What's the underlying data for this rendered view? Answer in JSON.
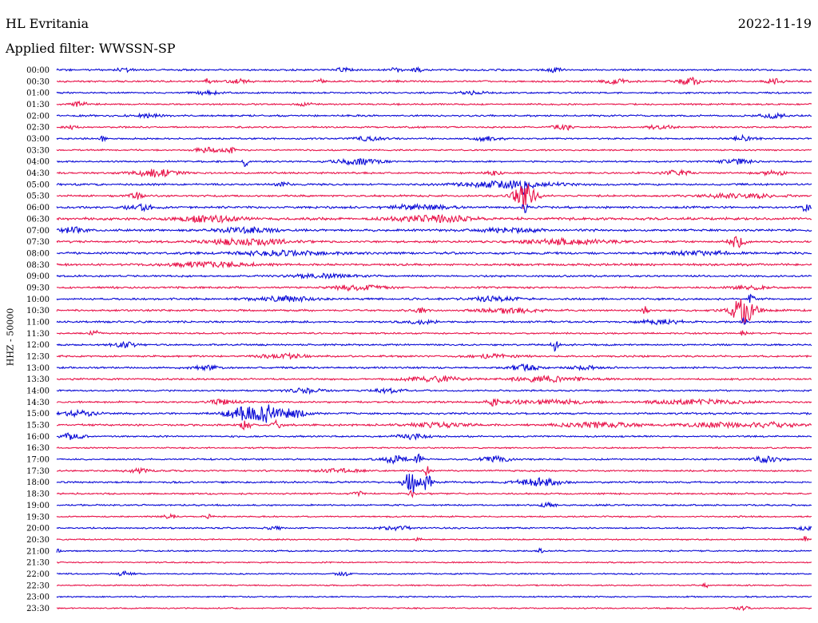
{
  "header": {
    "station": "HL Evritania",
    "date": "2022-11-19",
    "filter": "Applied filter: WWSSN-SP"
  },
  "channel_label": "HHZ - 50000",
  "colors": {
    "trace_a": "#0a0ad6",
    "trace_b": "#e8134a"
  },
  "chart_data": {
    "type": "helicorder",
    "rows": [
      {
        "time": "00:00",
        "noise": 0.55,
        "events": [
          {
            "t": 0.09,
            "a": 1.2,
            "w": 0.01
          },
          {
            "t": 0.38,
            "a": 1.3,
            "w": 0.01
          },
          {
            "t": 0.45,
            "a": 2.2,
            "w": 0.006
          },
          {
            "t": 0.48,
            "a": 1.2,
            "w": 0.01
          },
          {
            "t": 0.66,
            "a": 1.3,
            "w": 0.01
          }
        ]
      },
      {
        "time": "00:30",
        "noise": 0.55,
        "events": [
          {
            "t": 0.2,
            "a": 1.5,
            "w": 0.006
          },
          {
            "t": 0.24,
            "a": 1.6,
            "w": 0.012
          },
          {
            "t": 0.35,
            "a": 2.2,
            "w": 0.005
          },
          {
            "t": 0.74,
            "a": 1.8,
            "w": 0.015
          },
          {
            "t": 0.84,
            "a": 2.2,
            "w": 0.015
          },
          {
            "t": 0.95,
            "a": 1.5,
            "w": 0.012
          }
        ]
      },
      {
        "time": "01:00",
        "noise": 0.5,
        "events": [
          {
            "t": 0.2,
            "a": 1.0,
            "w": 0.02
          },
          {
            "t": 0.55,
            "a": 1.0,
            "w": 0.02
          }
        ]
      },
      {
        "time": "01:30",
        "noise": 0.5,
        "events": [
          {
            "t": 0.03,
            "a": 1.6,
            "w": 0.01
          },
          {
            "t": 0.33,
            "a": 1.0,
            "w": 0.01
          }
        ]
      },
      {
        "time": "02:00",
        "noise": 0.55,
        "events": [
          {
            "t": 0.12,
            "a": 1.0,
            "w": 0.02
          },
          {
            "t": 0.95,
            "a": 1.4,
            "w": 0.02
          }
        ]
      },
      {
        "time": "02:30",
        "noise": 0.5,
        "events": [
          {
            "t": 0.02,
            "a": 1.4,
            "w": 0.01
          },
          {
            "t": 0.67,
            "a": 2.2,
            "w": 0.012
          },
          {
            "t": 0.8,
            "a": 1.2,
            "w": 0.02
          }
        ]
      },
      {
        "time": "03:00",
        "noise": 0.5,
        "events": [
          {
            "t": 0.06,
            "a": 2.0,
            "w": 0.004
          },
          {
            "t": 0.41,
            "a": 1.3,
            "w": 0.02
          },
          {
            "t": 0.57,
            "a": 1.3,
            "w": 0.02
          },
          {
            "t": 0.91,
            "a": 1.8,
            "w": 0.015
          }
        ]
      },
      {
        "time": "03:30",
        "noise": 0.45,
        "events": [
          {
            "t": 0.2,
            "a": 1.5,
            "w": 0.02
          },
          {
            "t": 0.23,
            "a": 2.0,
            "w": 0.006
          }
        ]
      },
      {
        "time": "04:00",
        "noise": 0.5,
        "events": [
          {
            "t": 0.25,
            "a": 5.5,
            "w": 0.003
          },
          {
            "t": 0.4,
            "a": 2.0,
            "w": 0.03
          },
          {
            "t": 0.9,
            "a": 1.5,
            "w": 0.02
          }
        ]
      },
      {
        "time": "04:30",
        "noise": 0.55,
        "events": [
          {
            "t": 0.13,
            "a": 2.5,
            "w": 0.03
          },
          {
            "t": 0.58,
            "a": 1.2,
            "w": 0.01
          },
          {
            "t": 0.82,
            "a": 1.5,
            "w": 0.02
          },
          {
            "t": 0.95,
            "a": 1.2,
            "w": 0.02
          }
        ]
      },
      {
        "time": "05:00",
        "noise": 0.6,
        "events": [
          {
            "t": 0.3,
            "a": 1.4,
            "w": 0.01
          },
          {
            "t": 0.6,
            "a": 2.2,
            "w": 0.06
          },
          {
            "t": 0.62,
            "a": 5.5,
            "w": 0.004
          }
        ]
      },
      {
        "time": "05:30",
        "noise": 0.6,
        "events": [
          {
            "t": 0.105,
            "a": 2.2,
            "w": 0.008
          },
          {
            "t": 0.62,
            "a": 9.0,
            "w": 0.014
          },
          {
            "t": 0.9,
            "a": 1.5,
            "w": 0.05
          }
        ]
      },
      {
        "time": "06:00",
        "noise": 0.7,
        "events": [
          {
            "t": 0.11,
            "a": 1.6,
            "w": 0.02
          },
          {
            "t": 0.48,
            "a": 1.4,
            "w": 0.04
          },
          {
            "t": 0.62,
            "a": 4.0,
            "w": 0.003
          },
          {
            "t": 0.99,
            "a": 2.0,
            "w": 0.01
          }
        ]
      },
      {
        "time": "06:30",
        "noise": 0.8,
        "events": [
          {
            "t": 0.2,
            "a": 2.0,
            "w": 0.04
          },
          {
            "t": 0.5,
            "a": 2.0,
            "w": 0.05
          }
        ]
      },
      {
        "time": "07:00",
        "noise": 0.7,
        "events": [
          {
            "t": 0.02,
            "a": 2.0,
            "w": 0.015
          },
          {
            "t": 0.25,
            "a": 1.5,
            "w": 0.04
          },
          {
            "t": 0.6,
            "a": 1.3,
            "w": 0.04
          }
        ]
      },
      {
        "time": "07:30",
        "noise": 0.65,
        "events": [
          {
            "t": 0.25,
            "a": 2.2,
            "w": 0.05
          },
          {
            "t": 0.68,
            "a": 2.0,
            "w": 0.06
          },
          {
            "t": 0.9,
            "a": 4.0,
            "w": 0.01
          }
        ]
      },
      {
        "time": "08:00",
        "noise": 0.7,
        "events": [
          {
            "t": 0.3,
            "a": 1.5,
            "w": 0.06
          },
          {
            "t": 0.85,
            "a": 1.4,
            "w": 0.04
          }
        ]
      },
      {
        "time": "08:30",
        "noise": 0.7,
        "events": [
          {
            "t": 0.2,
            "a": 1.6,
            "w": 0.05
          }
        ]
      },
      {
        "time": "09:00",
        "noise": 0.55,
        "events": [
          {
            "t": 0.35,
            "a": 1.2,
            "w": 0.05
          }
        ]
      },
      {
        "time": "09:30",
        "noise": 0.6,
        "events": [
          {
            "t": 0.4,
            "a": 2.0,
            "w": 0.03
          },
          {
            "t": 0.92,
            "a": 1.3,
            "w": 0.02
          }
        ]
      },
      {
        "time": "10:00",
        "noise": 0.6,
        "events": [
          {
            "t": 0.3,
            "a": 1.6,
            "w": 0.04
          },
          {
            "t": 0.58,
            "a": 1.6,
            "w": 0.03
          },
          {
            "t": 0.92,
            "a": 3.5,
            "w": 0.004
          }
        ]
      },
      {
        "time": "10:30",
        "noise": 0.6,
        "events": [
          {
            "t": 0.48,
            "a": 1.4,
            "w": 0.01
          },
          {
            "t": 0.6,
            "a": 1.6,
            "w": 0.04
          },
          {
            "t": 0.78,
            "a": 2.5,
            "w": 0.004
          },
          {
            "t": 0.91,
            "a": 9.0,
            "w": 0.016
          }
        ]
      },
      {
        "time": "11:00",
        "noise": 0.55,
        "events": [
          {
            "t": 0.48,
            "a": 1.2,
            "w": 0.02
          },
          {
            "t": 0.8,
            "a": 1.3,
            "w": 0.03
          },
          {
            "t": 0.91,
            "a": 3.5,
            "w": 0.004
          }
        ]
      },
      {
        "time": "11:30",
        "noise": 0.5,
        "events": [
          {
            "t": 0.05,
            "a": 1.8,
            "w": 0.006
          },
          {
            "t": 0.91,
            "a": 3.0,
            "w": 0.003
          }
        ]
      },
      {
        "time": "12:00",
        "noise": 0.55,
        "events": [
          {
            "t": 0.09,
            "a": 1.8,
            "w": 0.015
          },
          {
            "t": 0.66,
            "a": 4.0,
            "w": 0.004
          }
        ]
      },
      {
        "time": "12:30",
        "noise": 0.55,
        "events": [
          {
            "t": 0.3,
            "a": 1.5,
            "w": 0.03
          },
          {
            "t": 0.58,
            "a": 1.3,
            "w": 0.03
          }
        ]
      },
      {
        "time": "13:00",
        "noise": 0.55,
        "events": [
          {
            "t": 0.2,
            "a": 1.3,
            "w": 0.02
          },
          {
            "t": 0.62,
            "a": 2.0,
            "w": 0.02
          },
          {
            "t": 0.7,
            "a": 1.3,
            "w": 0.02
          }
        ]
      },
      {
        "time": "13:30",
        "noise": 0.55,
        "events": [
          {
            "t": 0.5,
            "a": 1.8,
            "w": 0.04
          },
          {
            "t": 0.65,
            "a": 1.8,
            "w": 0.05
          }
        ]
      },
      {
        "time": "14:00",
        "noise": 0.5,
        "events": [
          {
            "t": 0.33,
            "a": 1.4,
            "w": 0.03
          },
          {
            "t": 0.44,
            "a": 1.4,
            "w": 0.02
          }
        ]
      },
      {
        "time": "14:30",
        "noise": 0.55,
        "events": [
          {
            "t": 0.22,
            "a": 1.6,
            "w": 0.02
          },
          {
            "t": 0.58,
            "a": 2.2,
            "w": 0.01
          },
          {
            "t": 0.65,
            "a": 1.4,
            "w": 0.06
          },
          {
            "t": 0.85,
            "a": 1.5,
            "w": 0.06
          }
        ]
      },
      {
        "time": "15:00",
        "noise": 0.6,
        "events": [
          {
            "t": 0.03,
            "a": 1.8,
            "w": 0.02
          },
          {
            "t": 0.25,
            "a": 4.5,
            "w": 0.025
          },
          {
            "t": 0.28,
            "a": 5.5,
            "w": 0.012
          },
          {
            "t": 0.31,
            "a": 3.0,
            "w": 0.02
          }
        ]
      },
      {
        "time": "15:30",
        "noise": 0.6,
        "events": [
          {
            "t": 0.25,
            "a": 3.0,
            "w": 0.008
          },
          {
            "t": 0.29,
            "a": 3.0,
            "w": 0.006
          },
          {
            "t": 0.5,
            "a": 1.6,
            "w": 0.04
          },
          {
            "t": 0.72,
            "a": 1.8,
            "w": 0.05
          },
          {
            "t": 0.87,
            "a": 1.5,
            "w": 0.04
          },
          {
            "t": 0.95,
            "a": 1.5,
            "w": 0.03
          }
        ]
      },
      {
        "time": "16:00",
        "noise": 0.5,
        "events": [
          {
            "t": 0.02,
            "a": 2.2,
            "w": 0.015
          },
          {
            "t": 0.47,
            "a": 1.8,
            "w": 0.02
          }
        ]
      },
      {
        "time": "16:30",
        "noise": 0.45,
        "events": []
      },
      {
        "time": "17:00",
        "noise": 0.5,
        "events": [
          {
            "t": 0.45,
            "a": 2.5,
            "w": 0.02
          },
          {
            "t": 0.48,
            "a": 3.0,
            "w": 0.005
          },
          {
            "t": 0.58,
            "a": 1.8,
            "w": 0.02
          },
          {
            "t": 0.94,
            "a": 1.8,
            "w": 0.02
          }
        ]
      },
      {
        "time": "17:30",
        "noise": 0.5,
        "events": [
          {
            "t": 0.11,
            "a": 1.3,
            "w": 0.02
          },
          {
            "t": 0.37,
            "a": 1.4,
            "w": 0.03
          },
          {
            "t": 0.49,
            "a": 3.5,
            "w": 0.004
          }
        ]
      },
      {
        "time": "18:00",
        "noise": 0.55,
        "events": [
          {
            "t": 0.47,
            "a": 8.5,
            "w": 0.01
          },
          {
            "t": 0.49,
            "a": 6.0,
            "w": 0.006
          },
          {
            "t": 0.64,
            "a": 2.5,
            "w": 0.03
          }
        ]
      },
      {
        "time": "18:30",
        "noise": 0.5,
        "events": [
          {
            "t": 0.4,
            "a": 1.5,
            "w": 0.006
          },
          {
            "t": 0.47,
            "a": 3.0,
            "w": 0.004
          }
        ]
      },
      {
        "time": "19:00",
        "noise": 0.5,
        "events": [
          {
            "t": 0.65,
            "a": 1.3,
            "w": 0.01
          }
        ]
      },
      {
        "time": "19:30",
        "noise": 0.45,
        "events": [
          {
            "t": 0.15,
            "a": 1.3,
            "w": 0.01
          },
          {
            "t": 0.2,
            "a": 1.4,
            "w": 0.006
          }
        ]
      },
      {
        "time": "20:00",
        "noise": 0.45,
        "events": [
          {
            "t": 0.29,
            "a": 1.3,
            "w": 0.01
          },
          {
            "t": 0.45,
            "a": 1.3,
            "w": 0.02
          },
          {
            "t": 0.99,
            "a": 1.3,
            "w": 0.01
          }
        ]
      },
      {
        "time": "20:30",
        "noise": 0.4,
        "events": [
          {
            "t": 0.48,
            "a": 1.3,
            "w": 0.004
          },
          {
            "t": 0.99,
            "a": 2.0,
            "w": 0.004
          }
        ]
      },
      {
        "time": "21:00",
        "noise": 0.45,
        "events": [
          {
            "t": 0.0,
            "a": 1.4,
            "w": 0.004
          },
          {
            "t": 0.64,
            "a": 1.5,
            "w": 0.004
          }
        ]
      },
      {
        "time": "21:30",
        "noise": 0.4,
        "events": []
      },
      {
        "time": "22:00",
        "noise": 0.4,
        "events": [
          {
            "t": 0.09,
            "a": 1.5,
            "w": 0.01
          },
          {
            "t": 0.38,
            "a": 1.2,
            "w": 0.01
          }
        ]
      },
      {
        "time": "22:30",
        "noise": 0.4,
        "events": [
          {
            "t": 0.86,
            "a": 1.4,
            "w": 0.004
          }
        ]
      },
      {
        "time": "23:00",
        "noise": 0.4,
        "events": []
      },
      {
        "time": "23:30",
        "noise": 0.4,
        "events": [
          {
            "t": 0.91,
            "a": 1.3,
            "w": 0.008
          }
        ]
      }
    ]
  }
}
